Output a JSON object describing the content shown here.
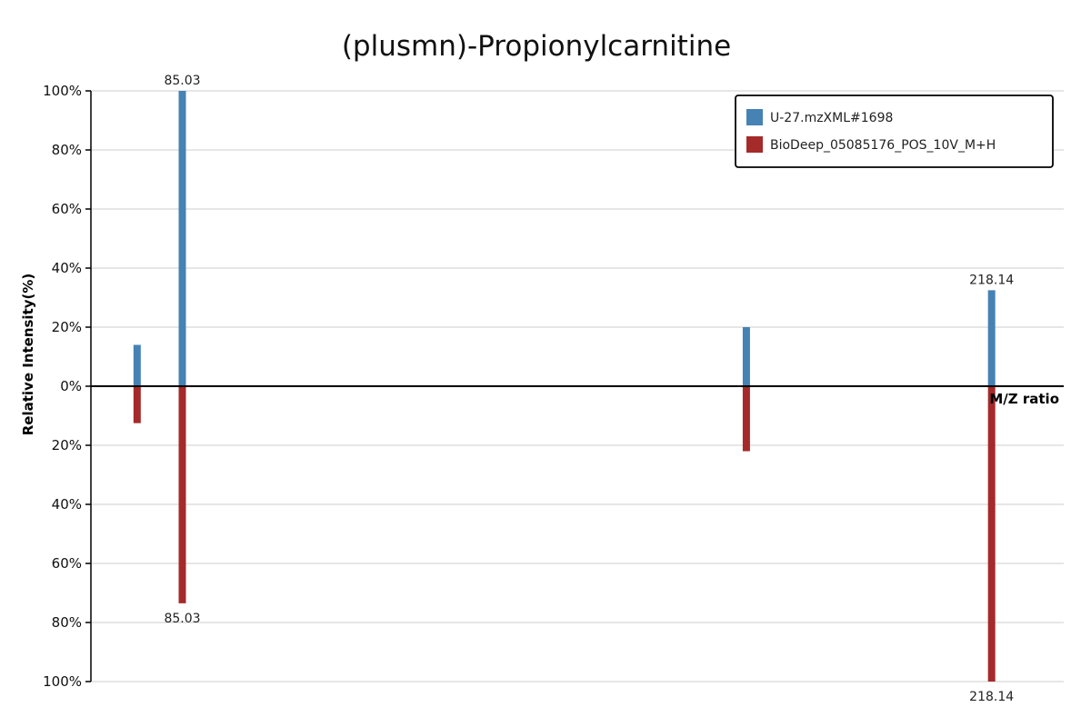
{
  "chart_data": {
    "type": "bar",
    "title": "(plusmn)-Propionylcarnitine",
    "xlabel": "M/Z ratio",
    "ylabel": "Relative Intensity(%)",
    "ylim": [
      -100,
      100
    ],
    "xlim": [
      70,
      230
    ],
    "y_ticks": [
      100,
      80,
      60,
      40,
      20,
      0,
      -20,
      -40,
      -60,
      -80,
      -100
    ],
    "y_tick_labels": [
      "100%",
      "80%",
      "60%",
      "40%",
      "20%",
      "0%",
      "20%",
      "40%",
      "60%",
      "80%",
      "100%"
    ],
    "grid": true,
    "legend_position": "top-right",
    "series": [
      {
        "name": "U-27.mzXML#1698",
        "color": "#4682b4",
        "direction": "up",
        "peaks": [
          {
            "mz": 77.6,
            "intensity": 14,
            "label": ""
          },
          {
            "mz": 85.03,
            "intensity": 100,
            "label": "85.03"
          },
          {
            "mz": 177.8,
            "intensity": 20,
            "label": ""
          },
          {
            "mz": 218.14,
            "intensity": 32.5,
            "label": "218.14"
          }
        ]
      },
      {
        "name": "BioDeep_05085176_POS_10V_M+H",
        "color": "#a52a2a",
        "direction": "down",
        "peaks": [
          {
            "mz": 77.6,
            "intensity": 12.5,
            "label": ""
          },
          {
            "mz": 85.03,
            "intensity": 73.5,
            "label": "85.03"
          },
          {
            "mz": 177.8,
            "intensity": 22,
            "label": ""
          },
          {
            "mz": 218.14,
            "intensity": 100,
            "label": "218.14"
          }
        ]
      }
    ]
  }
}
